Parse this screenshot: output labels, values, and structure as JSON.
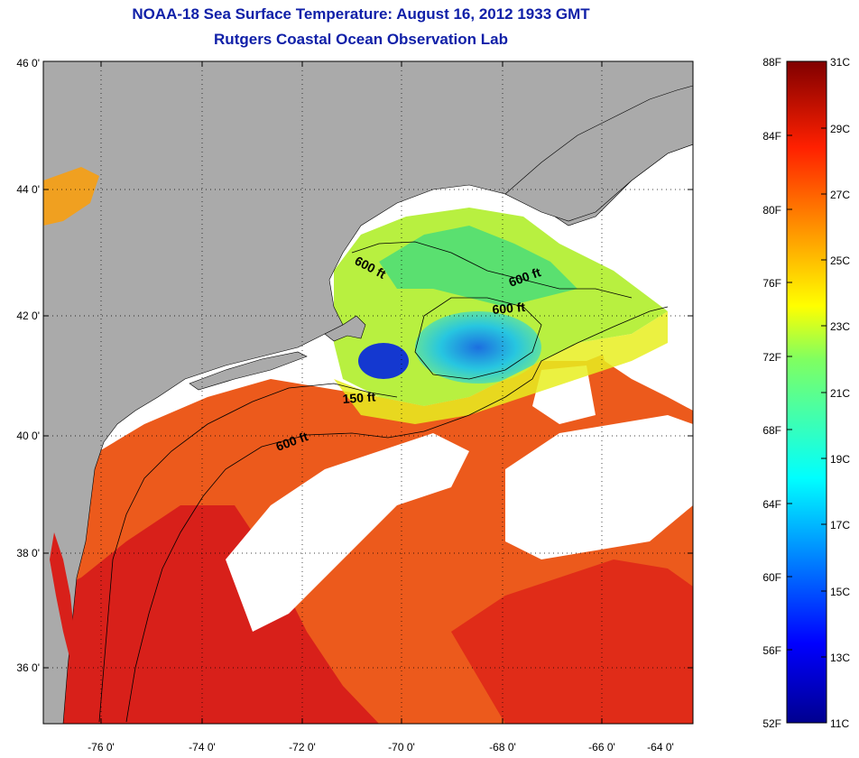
{
  "header": {
    "title_line1": "NOAA-18 Sea Surface Temperature:  August 16, 2012 1933 GMT",
    "title_line2": "Rutgers Coastal Ocean Observation Lab"
  },
  "map": {
    "lat_labels": [
      "46 0'",
      "44 0'",
      "42 0'",
      "40 0'",
      "38 0'",
      "36 0'"
    ],
    "lon_labels": [
      "-76 0'",
      "-74 0'",
      "-72 0'",
      "-70 0'",
      "-68 0'",
      "-66 0'",
      "-64 0'"
    ],
    "contour_labels": [
      "600 ft",
      "600 ft",
      "600 ft",
      "150 ft",
      "600 ft"
    ],
    "colors": {
      "land": "#aaaaaa",
      "missing_data": "#ffffff",
      "warm": "#e8321a",
      "cool": "#1c6fe0"
    }
  },
  "colorbar": {
    "fahrenheit_labels": [
      "88F",
      "84F",
      "80F",
      "76F",
      "72F",
      "68F",
      "64F",
      "60F",
      "56F",
      "52F"
    ],
    "celsius_labels": [
      "31C",
      "29C",
      "27C",
      "25C",
      "23C",
      "21C",
      "19C",
      "17C",
      "15C",
      "13C",
      "11C"
    ]
  }
}
